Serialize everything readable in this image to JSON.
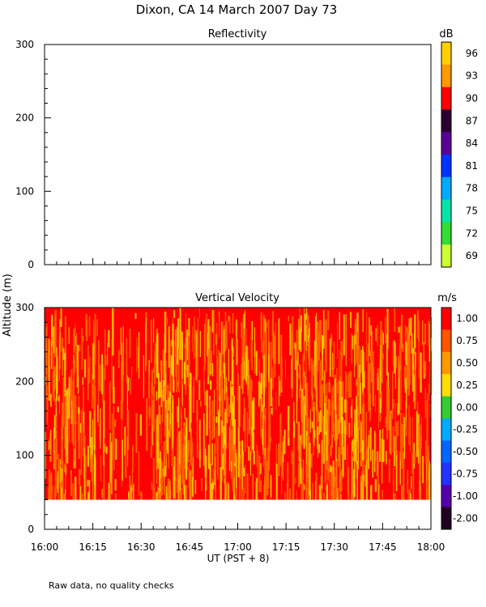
{
  "header": {
    "title": "Dixon, CA 14 March 2007  Day  73"
  },
  "footer": {
    "note": "Raw data, no quality checks"
  },
  "chart_data": [
    {
      "type": "heatmap",
      "title": "Reflectivity",
      "ylabel": "Altitude (m)",
      "ylim": [
        0,
        300
      ],
      "yticks": [
        0,
        100,
        200,
        300
      ],
      "xlim": [
        "16:00",
        "18:00"
      ],
      "colorbar": {
        "unit": "dB",
        "labels": [
          "96",
          "93",
          "90",
          "87",
          "84",
          "81",
          "78",
          "75",
          "72",
          "69"
        ],
        "colors": [
          "#ffd000",
          "#ff9900",
          "#ff0000",
          "#2a0033",
          "#5a0099",
          "#0033ff",
          "#00aaff",
          "#00e6a8",
          "#33dd33",
          "#ccff33"
        ]
      },
      "data": "no data displayed"
    },
    {
      "type": "heatmap",
      "title": "Vertical Velocity",
      "ylabel": "Altitude (m)",
      "xlabel": "UT  (PST + 8)",
      "ylim": [
        0,
        300
      ],
      "yticks": [
        0,
        100,
        200,
        300
      ],
      "xticks": [
        "16:00",
        "16:15",
        "16:30",
        "16:45",
        "17:00",
        "17:15",
        "17:30",
        "17:45",
        "18:00"
      ],
      "data_altitude_range": [
        40,
        300
      ],
      "colorbar": {
        "unit": "m/s",
        "labels": [
          "1.00",
          "0.75",
          "0.50",
          "0.25",
          "0.00",
          "-0.25",
          "-0.50",
          "-0.75",
          "-1.00",
          "-2.00"
        ],
        "colors": [
          "#ff0000",
          "#ff5500",
          "#ff9900",
          "#ffdd00",
          "#33cc33",
          "#00aaff",
          "#0066ff",
          "#2233ff",
          "#5500aa",
          "#220022"
        ]
      },
      "dominant_colors": [
        "#ff0000",
        "#ff6600",
        "#ffcc00"
      ]
    }
  ]
}
